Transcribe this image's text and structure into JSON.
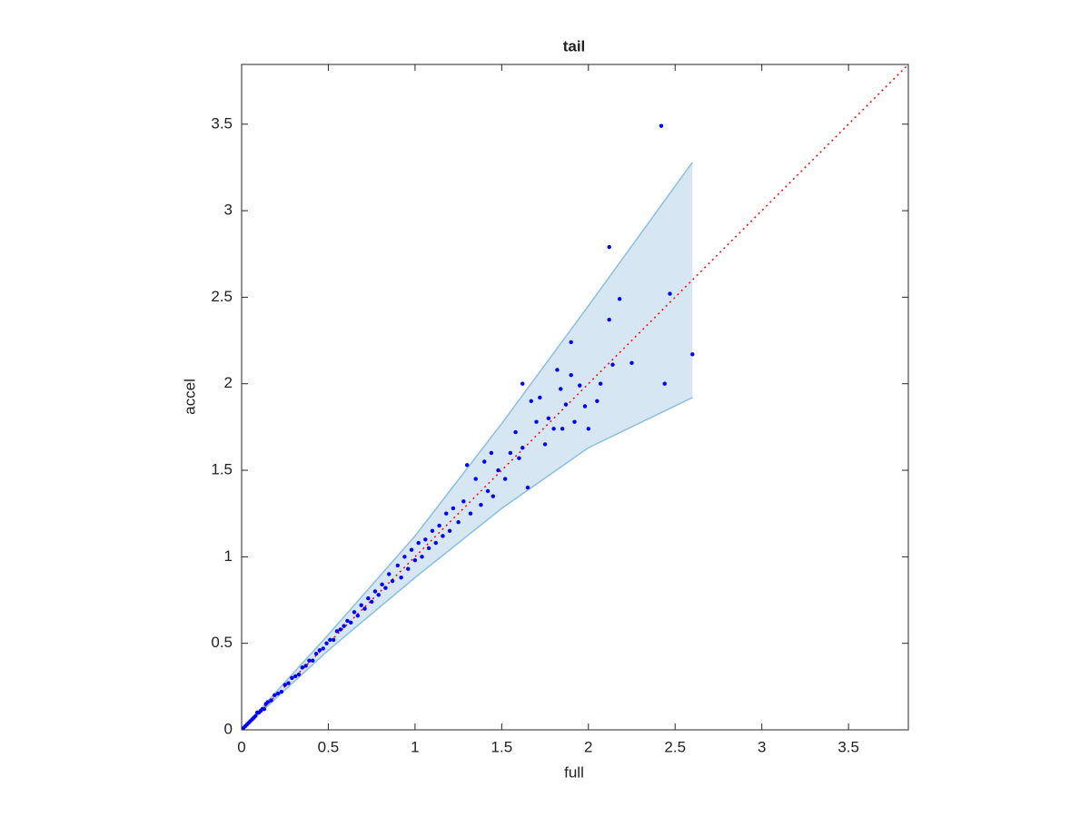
{
  "chart_data": {
    "type": "scatter",
    "title": "tail",
    "xlabel": "full",
    "ylabel": "accel",
    "xlim": [
      0,
      3.845
    ],
    "ylim": [
      0,
      3.845
    ],
    "xticks": [
      0,
      0.5,
      1,
      1.5,
      2,
      2.5,
      3,
      3.5
    ],
    "yticks": [
      0,
      0.5,
      1,
      1.5,
      2,
      2.5,
      3,
      3.5
    ],
    "color": "#0000ff",
    "x": [
      0.01,
      0.02,
      0.03,
      0.04,
      0.05,
      0.06,
      0.07,
      0.08,
      0.09,
      0.1,
      0.11,
      0.12,
      0.13,
      0.14,
      0.15,
      0.17,
      0.19,
      0.21,
      0.23,
      0.25,
      0.27,
      0.29,
      0.31,
      0.33,
      0.35,
      0.37,
      0.39,
      0.41,
      0.43,
      0.45,
      0.47,
      0.49,
      0.51,
      0.53,
      0.55,
      0.57,
      0.59,
      0.61,
      0.63,
      0.65,
      0.67,
      0.69,
      0.71,
      0.73,
      0.75,
      0.77,
      0.79,
      0.81,
      0.83,
      0.85,
      0.87,
      0.9,
      0.92,
      0.94,
      0.96,
      0.98,
      1.0,
      1.02,
      1.04,
      1.06,
      1.08,
      1.1,
      1.12,
      1.14,
      1.16,
      1.18,
      1.2,
      1.22,
      1.25,
      1.28,
      1.3,
      1.32,
      1.35,
      1.38,
      1.4,
      1.42,
      1.44,
      1.45,
      1.48,
      1.52,
      1.55,
      1.58,
      1.6,
      1.62,
      1.62,
      1.65,
      1.67,
      1.7,
      1.72,
      1.75,
      1.77,
      1.8,
      1.82,
      1.84,
      1.85,
      1.87,
      1.9,
      1.9,
      1.92,
      1.95,
      1.98,
      2.0,
      2.05,
      2.07,
      2.12,
      2.12,
      2.14,
      2.18,
      2.25,
      2.42,
      2.44,
      2.47,
      2.6
    ],
    "y": [
      0.01,
      0.02,
      0.03,
      0.04,
      0.05,
      0.06,
      0.07,
      0.08,
      0.1,
      0.1,
      0.11,
      0.12,
      0.12,
      0.15,
      0.16,
      0.17,
      0.2,
      0.21,
      0.22,
      0.26,
      0.27,
      0.3,
      0.31,
      0.32,
      0.36,
      0.37,
      0.4,
      0.4,
      0.44,
      0.46,
      0.47,
      0.5,
      0.52,
      0.52,
      0.57,
      0.58,
      0.6,
      0.63,
      0.62,
      0.68,
      0.66,
      0.72,
      0.7,
      0.76,
      0.74,
      0.8,
      0.78,
      0.84,
      0.82,
      0.9,
      0.86,
      0.95,
      0.88,
      1.0,
      0.93,
      1.04,
      0.98,
      1.08,
      1.0,
      1.1,
      1.05,
      1.15,
      1.08,
      1.18,
      1.12,
      1.25,
      1.15,
      1.28,
      1.2,
      1.32,
      1.53,
      1.25,
      1.45,
      1.3,
      1.55,
      1.38,
      1.6,
      1.35,
      1.5,
      1.45,
      1.6,
      1.72,
      1.57,
      2.0,
      1.63,
      1.4,
      1.9,
      1.78,
      1.92,
      1.65,
      1.8,
      1.74,
      2.08,
      1.97,
      1.74,
      1.88,
      2.05,
      2.24,
      1.78,
      1.99,
      1.87,
      1.74,
      1.9,
      2.0,
      2.79,
      2.37,
      2.11,
      2.49,
      2.12,
      3.49,
      2.0,
      2.52,
      2.17
    ],
    "band": {
      "x": [
        0,
        0.5,
        1,
        1.5,
        2,
        2.6
      ],
      "upper": [
        0,
        0.55,
        1.12,
        1.77,
        2.45,
        3.28
      ],
      "lower": [
        0,
        0.46,
        0.88,
        1.28,
        1.63,
        1.92
      ],
      "fill": "#d6e7f3",
      "edge": "#8bbfe0"
    },
    "reference_line": {
      "x": [
        0,
        3.845
      ],
      "y": [
        0,
        3.845
      ],
      "color": "#ff0000"
    }
  }
}
